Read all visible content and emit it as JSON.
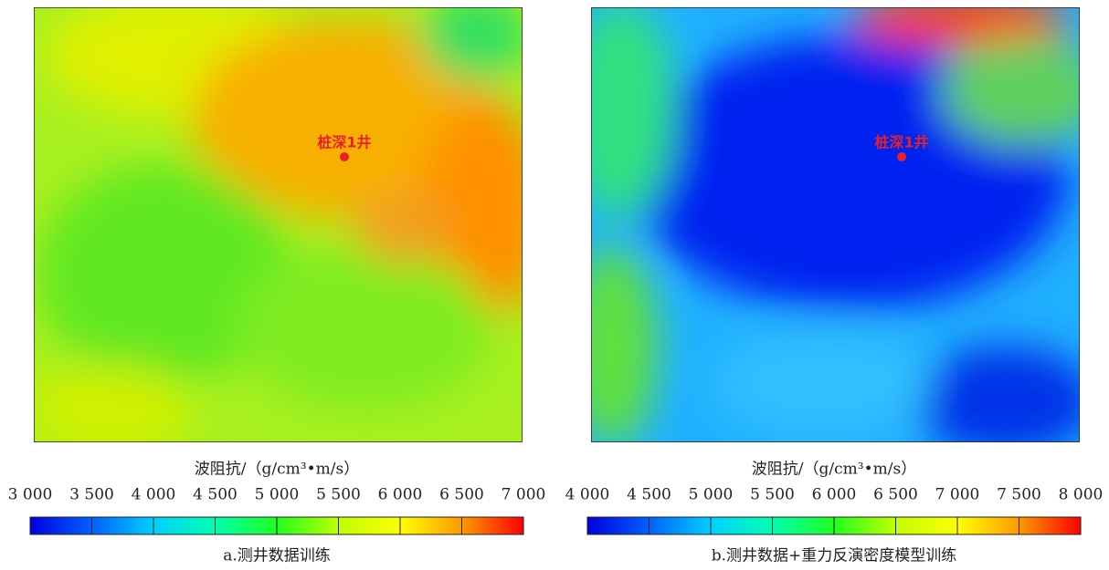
{
  "chart_data": [
    {
      "type": "heatmap",
      "annotation": "桩深1井",
      "axis_label": "波阻抗/（g/cm³•m/s）",
      "caption": "a.测井数据训练",
      "clim": [
        3000,
        7000
      ],
      "cticks": [
        {
          "value": 3000,
          "label": "3 000"
        },
        {
          "value": 3500,
          "label": "3 500"
        },
        {
          "value": 4000,
          "label": "4 000"
        },
        {
          "value": 4500,
          "label": "4 500"
        },
        {
          "value": 5000,
          "label": "5 000"
        },
        {
          "value": 5500,
          "label": "5 500"
        },
        {
          "value": 6000,
          "label": "6 000"
        },
        {
          "value": 6500,
          "label": "6 500"
        },
        {
          "value": 7000,
          "label": "7 000"
        }
      ],
      "colormap": [
        "#0000e0",
        "#0060ff",
        "#00d0ff",
        "#00ffb0",
        "#20ff20",
        "#c0ff00",
        "#ffff00",
        "#ff9a00",
        "#ff0000"
      ]
    },
    {
      "type": "heatmap",
      "annotation": "桩深1井",
      "axis_label": "波阻抗/（g/cm³•m/s）",
      "caption": "b.测井数据+重力反演密度模型训练",
      "clim": [
        4000,
        8000
      ],
      "cticks": [
        {
          "value": 4000,
          "label": "4 000"
        },
        {
          "value": 4500,
          "label": "4 500"
        },
        {
          "value": 5000,
          "label": "5 000"
        },
        {
          "value": 5500,
          "label": "5 500"
        },
        {
          "value": 6000,
          "label": "6 000"
        },
        {
          "value": 6500,
          "label": "6 500"
        },
        {
          "value": 7000,
          "label": "7 000"
        },
        {
          "value": 7500,
          "label": "7 500"
        },
        {
          "value": 8000,
          "label": "8 000"
        }
      ],
      "colormap": [
        "#0000e0",
        "#0060ff",
        "#00d0ff",
        "#00ffb0",
        "#20ff20",
        "#c0ff00",
        "#ffff00",
        "#ff9a00",
        "#ff0000"
      ]
    }
  ]
}
